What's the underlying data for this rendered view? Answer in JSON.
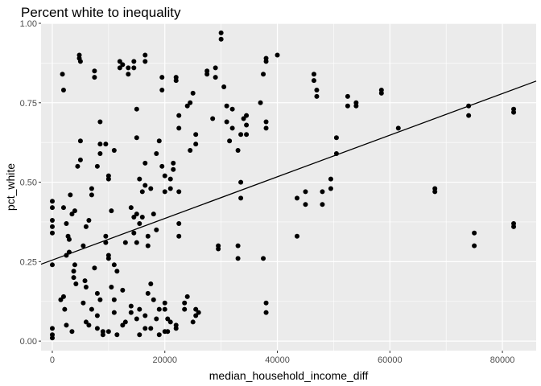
{
  "chart_data": {
    "type": "scatter",
    "title": "Percent white to inequality",
    "xlabel": "median_household_income_diff",
    "ylabel": "pct_white",
    "xlim": [
      -2000,
      86000
    ],
    "ylim": [
      -0.03,
      1.0
    ],
    "x_ticks": [
      0,
      20000,
      40000,
      60000,
      80000
    ],
    "x_tick_labels": [
      "0",
      "20000",
      "40000",
      "60000",
      "80000"
    ],
    "y_ticks": [
      0.0,
      0.25,
      0.5,
      0.75,
      1.0
    ],
    "y_tick_labels": [
      "0.00",
      "0.25",
      "0.50",
      "0.75",
      "1.00"
    ],
    "grid": true,
    "legend": "none",
    "colors": {
      "panel": "#EBEBEB",
      "grid": "#FFFFFF",
      "point": "#000000",
      "line": "#000000"
    },
    "fit_line": {
      "intercept": 0.255,
      "slope": 6.55e-06
    },
    "points": [
      [
        0,
        0.01
      ],
      [
        0,
        0.02
      ],
      [
        0,
        0.04
      ],
      [
        0,
        0.24
      ],
      [
        0,
        0.34
      ],
      [
        0,
        0.36
      ],
      [
        0,
        0.38
      ],
      [
        0,
        0.42
      ],
      [
        0,
        0.44
      ],
      [
        1800,
        0.84
      ],
      [
        2000,
        0.79
      ],
      [
        1500,
        0.13
      ],
      [
        2000,
        0.14
      ],
      [
        2200,
        0.1
      ],
      [
        2500,
        0.05
      ],
      [
        2500,
        0.27
      ],
      [
        2800,
        0.33
      ],
      [
        3000,
        0.32
      ],
      [
        2000,
        0.42
      ],
      [
        2500,
        0.37
      ],
      [
        3000,
        0.28
      ],
      [
        3200,
        0.46
      ],
      [
        3500,
        0.4
      ],
      [
        3500,
        0.03
      ],
      [
        4000,
        0.24
      ],
      [
        3800,
        0.22
      ],
      [
        4000,
        0.41
      ],
      [
        3800,
        0.2
      ],
      [
        4200,
        0.18
      ],
      [
        4500,
        0.55
      ],
      [
        4800,
        0.89
      ],
      [
        4800,
        0.9
      ],
      [
        5000,
        0.88
      ],
      [
        5000,
        0.63
      ],
      [
        5000,
        0.57
      ],
      [
        5500,
        0.3
      ],
      [
        5500,
        0.12
      ],
      [
        5800,
        0.19
      ],
      [
        6000,
        0.17
      ],
      [
        6000,
        0.36
      ],
      [
        6000,
        0.06
      ],
      [
        6500,
        0.38
      ],
      [
        6500,
        0.05
      ],
      [
        7000,
        0.48
      ],
      [
        7000,
        0.46
      ],
      [
        7000,
        0.1
      ],
      [
        7500,
        0.85
      ],
      [
        7500,
        0.83
      ],
      [
        7500,
        0.23
      ],
      [
        8000,
        0.04
      ],
      [
        8000,
        0.15
      ],
      [
        8000,
        0.08
      ],
      [
        8500,
        0.69
      ],
      [
        8500,
        0.62
      ],
      [
        8500,
        0.59
      ],
      [
        8500,
        0.13
      ],
      [
        8000,
        0.55
      ],
      [
        9000,
        0.02
      ],
      [
        9000,
        0.03
      ],
      [
        9500,
        0.33
      ],
      [
        9500,
        0.31
      ],
      [
        9500,
        0.62
      ],
      [
        10000,
        0.52
      ],
      [
        10000,
        0.51
      ],
      [
        10000,
        0.27
      ],
      [
        10000,
        0.26
      ],
      [
        10500,
        0.17
      ],
      [
        10000,
        0.03
      ],
      [
        10500,
        0.41
      ],
      [
        11000,
        0.09
      ],
      [
        11000,
        0.6
      ],
      [
        11000,
        0.13
      ],
      [
        11000,
        0.24
      ],
      [
        11500,
        0.22
      ],
      [
        11500,
        0.02
      ],
      [
        12000,
        0.88
      ],
      [
        12000,
        0.86
      ],
      [
        12500,
        0.16
      ],
      [
        12500,
        0.05
      ],
      [
        12500,
        0.87
      ],
      [
        13000,
        0.31
      ],
      [
        13000,
        0.06
      ],
      [
        13500,
        0.86
      ],
      [
        13500,
        0.84
      ],
      [
        14000,
        0.42
      ],
      [
        14000,
        0.11
      ],
      [
        14000,
        0.09
      ],
      [
        14500,
        0.88
      ],
      [
        14500,
        0.86
      ],
      [
        14500,
        0.34
      ],
      [
        14500,
        0.39
      ],
      [
        15000,
        0.73
      ],
      [
        15000,
        0.64
      ],
      [
        15000,
        0.4
      ],
      [
        15000,
        0.31
      ],
      [
        15000,
        0.07
      ],
      [
        15500,
        0.37
      ],
      [
        15500,
        0.1
      ],
      [
        15500,
        0.02
      ],
      [
        15500,
        0.51
      ],
      [
        16000,
        0.39
      ],
      [
        16000,
        0.47
      ],
      [
        16500,
        0.56
      ],
      [
        16500,
        0.9
      ],
      [
        16500,
        0.88
      ],
      [
        16500,
        0.49
      ],
      [
        16500,
        0.08
      ],
      [
        16500,
        0.04
      ],
      [
        17000,
        0.33
      ],
      [
        17000,
        0.3
      ],
      [
        17000,
        0.15
      ],
      [
        17500,
        0.48
      ],
      [
        17500,
        0.18
      ],
      [
        17500,
        0.04
      ],
      [
        18000,
        0.13
      ],
      [
        18000,
        0.4
      ],
      [
        18500,
        0.59
      ],
      [
        18500,
        0.35
      ],
      [
        18500,
        0.07
      ],
      [
        19000,
        0.63
      ],
      [
        19000,
        0.1
      ],
      [
        19000,
        0.02
      ],
      [
        19500,
        0.83
      ],
      [
        19500,
        0.79
      ],
      [
        19500,
        0.55
      ],
      [
        20000,
        0.03
      ],
      [
        20000,
        0.12
      ],
      [
        20000,
        0.1
      ],
      [
        20000,
        0.47
      ],
      [
        20000,
        0.52
      ],
      [
        20500,
        0.07
      ],
      [
        20500,
        0.03
      ],
      [
        21000,
        0.06
      ],
      [
        21000,
        0.51
      ],
      [
        21000,
        0.48
      ],
      [
        21500,
        0.56
      ],
      [
        21500,
        0.54
      ],
      [
        22000,
        0.83
      ],
      [
        22000,
        0.82
      ],
      [
        22000,
        0.05
      ],
      [
        22000,
        0.04
      ],
      [
        22500,
        0.67
      ],
      [
        22500,
        0.71
      ],
      [
        22500,
        0.47
      ],
      [
        22500,
        0.37
      ],
      [
        22500,
        0.33
      ],
      [
        23500,
        0.12
      ],
      [
        23500,
        0.1
      ],
      [
        24000,
        0.14
      ],
      [
        24000,
        0.74
      ],
      [
        24500,
        0.75
      ],
      [
        24500,
        0.6
      ],
      [
        25000,
        0.78
      ],
      [
        25000,
        0.06
      ],
      [
        25500,
        0.65
      ],
      [
        25500,
        0.62
      ],
      [
        25500,
        0.1
      ],
      [
        25500,
        0.08
      ],
      [
        26000,
        0.09
      ],
      [
        27500,
        0.85
      ],
      [
        27500,
        0.84
      ],
      [
        28500,
        0.7
      ],
      [
        29000,
        0.83
      ],
      [
        29000,
        0.86
      ],
      [
        29500,
        0.29
      ],
      [
        29500,
        0.3
      ],
      [
        30000,
        0.97
      ],
      [
        30000,
        0.95
      ],
      [
        30500,
        0.8
      ],
      [
        31000,
        0.74
      ],
      [
        31000,
        0.69
      ],
      [
        31500,
        0.63
      ],
      [
        32000,
        0.67
      ],
      [
        32000,
        0.73
      ],
      [
        33000,
        0.6
      ],
      [
        33000,
        0.3
      ],
      [
        33000,
        0.26
      ],
      [
        33500,
        0.65
      ],
      [
        33500,
        0.5
      ],
      [
        33500,
        0.45
      ],
      [
        34000,
        0.7
      ],
      [
        34500,
        0.65
      ],
      [
        34500,
        0.68
      ],
      [
        34500,
        0.71
      ],
      [
        37000,
        0.75
      ],
      [
        37500,
        0.84
      ],
      [
        37500,
        0.26
      ],
      [
        38000,
        0.89
      ],
      [
        38000,
        0.88
      ],
      [
        38000,
        0.69
      ],
      [
        38000,
        0.67
      ],
      [
        38000,
        0.12
      ],
      [
        38000,
        0.09
      ],
      [
        40000,
        0.9
      ],
      [
        43500,
        0.45
      ],
      [
        43500,
        0.33
      ],
      [
        45000,
        0.47
      ],
      [
        45000,
        0.43
      ],
      [
        46500,
        0.84
      ],
      [
        46500,
        0.82
      ],
      [
        47000,
        0.79
      ],
      [
        47000,
        0.77
      ],
      [
        48000,
        0.47
      ],
      [
        48000,
        0.43
      ],
      [
        49500,
        0.51
      ],
      [
        49500,
        0.48
      ],
      [
        50500,
        0.64
      ],
      [
        50500,
        0.59
      ],
      [
        52500,
        0.77
      ],
      [
        52500,
        0.74
      ],
      [
        54000,
        0.74
      ],
      [
        54000,
        0.75
      ],
      [
        58500,
        0.79
      ],
      [
        58500,
        0.78
      ],
      [
        61500,
        0.67
      ],
      [
        68000,
        0.48
      ],
      [
        68000,
        0.47
      ],
      [
        74000,
        0.74
      ],
      [
        74000,
        0.71
      ],
      [
        75000,
        0.34
      ],
      [
        75000,
        0.3
      ],
      [
        82000,
        0.73
      ],
      [
        82000,
        0.72
      ],
      [
        82000,
        0.37
      ],
      [
        82000,
        0.36
      ]
    ]
  }
}
